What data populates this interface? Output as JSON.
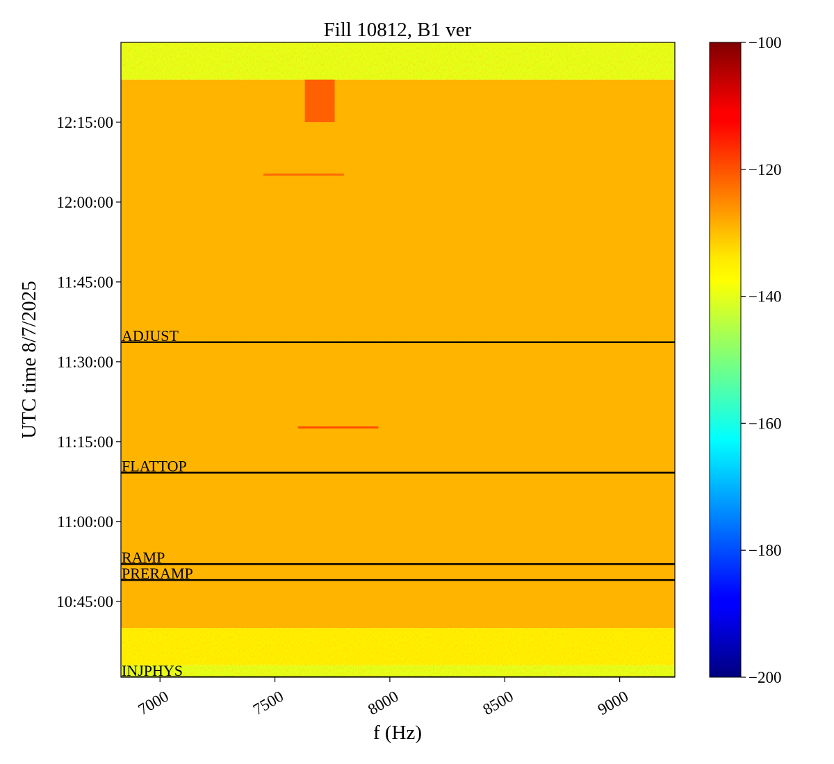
{
  "chart_data": {
    "type": "heatmap",
    "title": "Fill 10812, B1 ver",
    "xlabel": "f (Hz)",
    "ylabel": "UTC time 8/7/2025",
    "xlim": [
      6830,
      9240
    ],
    "x_ticks": [
      7000,
      7500,
      8000,
      8500,
      9000
    ],
    "x_tick_labels": [
      "7000",
      "7500",
      "8000",
      "8500",
      "9000"
    ],
    "ylim": [
      "10:30:45",
      "12:30:00"
    ],
    "y_ticks": [
      "10:45:00",
      "11:00:00",
      "11:15:00",
      "11:30:00",
      "11:45:00",
      "12:00:00",
      "12:15:00"
    ],
    "y_tick_labels": [
      "10:45:00",
      "11:00:00",
      "11:15:00",
      "11:30:00",
      "11:45:00",
      "12:00:00",
      "12:15:00"
    ],
    "colorbar": {
      "colormap": "jet",
      "range": [
        -200,
        -100
      ],
      "ticks": [
        -100,
        -120,
        -140,
        -160,
        -180,
        -200
      ],
      "tick_labels": [
        "−100",
        "−120",
        "−140",
        "−160",
        "−180",
        "−200"
      ]
    },
    "background_level_dB": {
      "before_10_33": -140,
      "10_33_to_10_40": -135,
      "10_40_to_12_23": -129,
      "after_12_23": -140
    },
    "hot_spots": [
      {
        "f_range": [
          7630,
          7760
        ],
        "time_range": [
          "12:15:00",
          "12:23:00"
        ],
        "level_dB": -120
      },
      {
        "f_range": [
          7600,
          7950
        ],
        "time": "11:17:40",
        "level_dB": -118
      },
      {
        "f_range": [
          7450,
          7800
        ],
        "time": "12:05:10",
        "level_dB": -121
      }
    ],
    "beam_modes": [
      {
        "label": "INJPHYS",
        "time": "10:30:45"
      },
      {
        "label": "PRERAMP",
        "time": "10:49:00"
      },
      {
        "label": "RAMP",
        "time": "10:52:00"
      },
      {
        "label": "FLATTOP",
        "time": "11:09:10"
      },
      {
        "label": "ADJUST",
        "time": "11:33:40"
      }
    ]
  }
}
